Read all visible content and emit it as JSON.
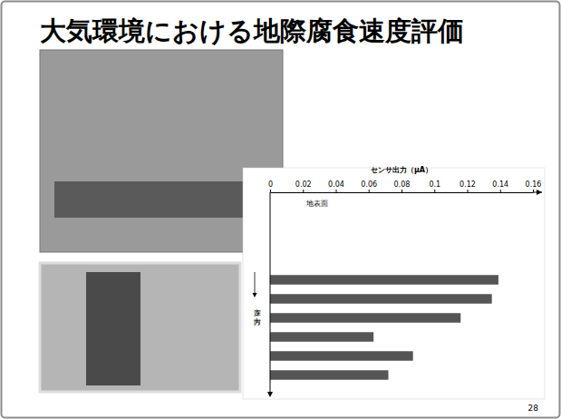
{
  "slide": {
    "title": "大気環境における地際腐食速度評価",
    "page_number": "28"
  },
  "chart_data": {
    "type": "bar",
    "orientation": "horizontal",
    "x_label": "センサ出力（μA）",
    "y_label": "深さ方向",
    "annotations": [
      "地表面"
    ],
    "categories": [
      null,
      null,
      null,
      null,
      null,
      null
    ],
    "values": [
      0.139,
      0.135,
      0.116,
      0.063,
      0.087,
      0.072
    ],
    "color": "#555555",
    "xlim": [
      0,
      0.16
    ],
    "xticks": [
      0,
      0.02,
      0.04,
      0.06,
      0.08,
      0.1,
      0.12,
      0.14,
      0.16
    ],
    "grid": false
  }
}
